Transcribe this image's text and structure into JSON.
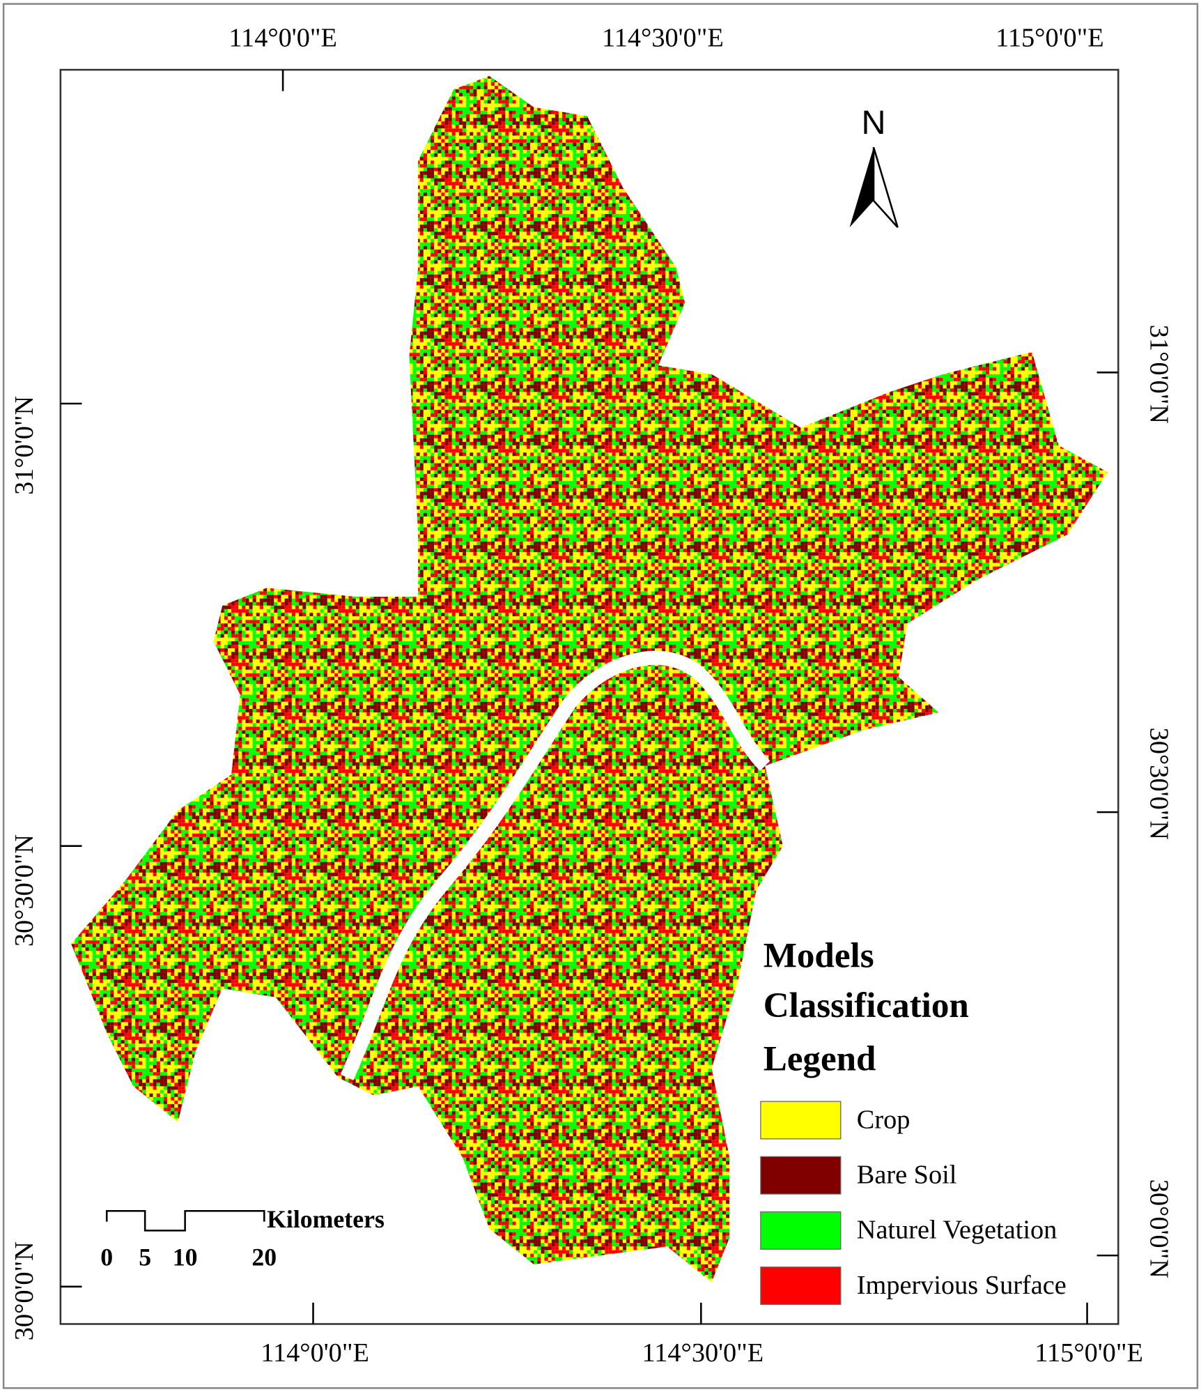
{
  "map": {
    "top_labels": [
      "114°0'0\"E",
      "114°30'0\"E",
      "115°0'0\"E"
    ],
    "bottom_labels": [
      "114°0'0\"E",
      "114°30'0\"E",
      "115°0'0\"E"
    ],
    "left_labels": [
      "31°0'0\"N",
      "30°30'0\"N",
      "30°0'0\"N"
    ],
    "right_labels": [
      "31°0'0\"N",
      "30°30'0\"N",
      "30°0'0\"N"
    ],
    "north": "N",
    "scale": {
      "unit": "Kilometers",
      "labels": [
        0,
        5,
        10,
        20
      ]
    },
    "legend": {
      "title": [
        "Models",
        "Classification",
        "Legend"
      ],
      "items": [
        {
          "label": "Crop",
          "color": "#ffff00"
        },
        {
          "label": "Bare Soil",
          "color": "#800000"
        },
        {
          "label": "Naturel Vegetation",
          "color": "#00ff00"
        },
        {
          "label": "Impervious Surface",
          "color": "#ff0000"
        }
      ]
    }
  }
}
